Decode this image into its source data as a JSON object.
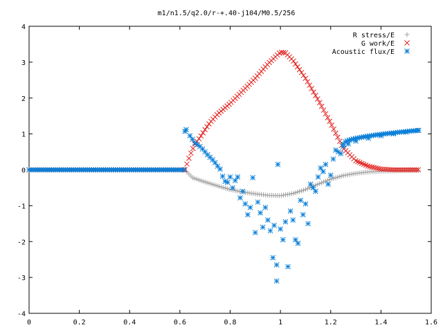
{
  "chart_data": {
    "type": "scatter",
    "title": "m1/n1.5/q2.0/r-+.40-j104/M0.5/256",
    "xlabel": "",
    "ylabel": "",
    "xlim": [
      0,
      1.6
    ],
    "ylim": [
      -4,
      4
    ],
    "x_ticks": [
      0,
      0.2,
      0.4,
      0.6,
      0.8,
      1,
      1.2,
      1.4,
      1.6
    ],
    "x_tick_labels": [
      "0",
      "0.2",
      "0.4",
      "0.6",
      "0.8",
      "1",
      "1.2",
      "1.4",
      "1.6"
    ],
    "y_ticks": [
      -4,
      -3,
      -2,
      -1,
      0,
      1,
      2,
      3,
      4
    ],
    "y_tick_labels": [
      "-4",
      "-3",
      "-2",
      "-1",
      "0",
      "1",
      "2",
      "3",
      "4"
    ],
    "grid": false,
    "legend_position": "top-right",
    "series": [
      {
        "name": "R stress/E",
        "marker": "plus",
        "color": "#a0a0a0",
        "x_range": [
          0,
          1.55
        ],
        "points": [
          [
            0.62,
            0
          ],
          [
            0.65,
            -0.22
          ],
          [
            0.7,
            -0.34
          ],
          [
            0.75,
            -0.45
          ],
          [
            0.8,
            -0.55
          ],
          [
            0.85,
            -0.62
          ],
          [
            0.9,
            -0.67
          ],
          [
            0.95,
            -0.71
          ],
          [
            1.0,
            -0.72
          ],
          [
            1.05,
            -0.66
          ],
          [
            1.1,
            -0.55
          ],
          [
            1.15,
            -0.4
          ],
          [
            1.2,
            -0.26
          ],
          [
            1.25,
            -0.16
          ],
          [
            1.3,
            -0.1
          ],
          [
            1.35,
            -0.06
          ],
          [
            1.4,
            -0.04
          ],
          [
            1.45,
            -0.03
          ],
          [
            1.5,
            -0.02
          ],
          [
            1.55,
            -0.02
          ]
        ]
      },
      {
        "name": "G work/E",
        "marker": "cross",
        "color": "#e0201c",
        "x_range": [
          0,
          1.55
        ],
        "points": [
          [
            0.62,
            0
          ],
          [
            0.64,
            0.4
          ],
          [
            0.66,
            0.72
          ],
          [
            0.68,
            0.9
          ],
          [
            0.7,
            1.12
          ],
          [
            0.72,
            1.32
          ],
          [
            0.75,
            1.55
          ],
          [
            0.8,
            1.85
          ],
          [
            0.85,
            2.2
          ],
          [
            0.9,
            2.55
          ],
          [
            0.95,
            2.95
          ],
          [
            1.0,
            3.28
          ],
          [
            1.02,
            3.26
          ],
          [
            1.05,
            3.05
          ],
          [
            1.1,
            2.55
          ],
          [
            1.15,
            1.95
          ],
          [
            1.2,
            1.3
          ],
          [
            1.25,
            0.6
          ],
          [
            1.3,
            0.25
          ],
          [
            1.35,
            0.1
          ],
          [
            1.4,
            0.02
          ],
          [
            1.45,
            0.0
          ],
          [
            1.5,
            0.0
          ],
          [
            1.55,
            0.0
          ]
        ]
      },
      {
        "name": "Acoustic flux/E",
        "marker": "star",
        "color": "#0a7fd8",
        "x_range": [
          0,
          1.55
        ],
        "points": [
          [
            0.62,
            1.07
          ],
          [
            0.625,
            1.12
          ],
          [
            0.64,
            0.95
          ],
          [
            0.65,
            0.85
          ],
          [
            0.66,
            0.75
          ],
          [
            0.67,
            0.7
          ],
          [
            0.68,
            0.65
          ],
          [
            0.69,
            0.58
          ],
          [
            0.7,
            0.5
          ],
          [
            0.71,
            0.42
          ],
          [
            0.72,
            0.35
          ],
          [
            0.73,
            0.28
          ],
          [
            0.74,
            0.2
          ],
          [
            0.75,
            0.1
          ],
          [
            0.76,
            0.02
          ],
          [
            0.77,
            -0.18
          ],
          [
            0.78,
            -0.32
          ],
          [
            0.79,
            -0.35
          ],
          [
            0.8,
            -0.2
          ],
          [
            0.81,
            -0.5
          ],
          [
            0.82,
            -0.3
          ],
          [
            0.83,
            -0.2
          ],
          [
            0.84,
            -0.78
          ],
          [
            0.85,
            -0.6
          ],
          [
            0.86,
            -0.95
          ],
          [
            0.87,
            -1.25
          ],
          [
            0.88,
            -1.05
          ],
          [
            0.89,
            -0.22
          ],
          [
            0.9,
            -1.75
          ],
          [
            0.91,
            -0.9
          ],
          [
            0.92,
            -1.2
          ],
          [
            0.93,
            -1.6
          ],
          [
            0.94,
            -1.05
          ],
          [
            0.95,
            -1.4
          ],
          [
            0.96,
            -1.7
          ],
          [
            0.97,
            -2.45
          ],
          [
            0.975,
            -1.55
          ],
          [
            0.985,
            -2.65
          ],
          [
            0.99,
            0.15
          ],
          [
            1.0,
            -1.65
          ],
          [
            1.01,
            -1.95
          ],
          [
            1.02,
            -1.45
          ],
          [
            1.03,
            -2.7
          ],
          [
            1.04,
            -1.15
          ],
          [
            1.05,
            -1.4
          ],
          [
            1.06,
            -1.95
          ],
          [
            1.07,
            -2.05
          ],
          [
            1.08,
            -0.85
          ],
          [
            1.09,
            -1.25
          ],
          [
            1.1,
            -0.95
          ],
          [
            1.11,
            -1.5
          ],
          [
            1.12,
            -0.4
          ],
          [
            1.13,
            -0.5
          ],
          [
            1.14,
            -0.6
          ],
          [
            1.15,
            -0.2
          ],
          [
            1.16,
            0.05
          ],
          [
            1.17,
            -0.05
          ],
          [
            1.18,
            0.15
          ],
          [
            1.19,
            -0.4
          ],
          [
            1.2,
            -0.15
          ],
          [
            1.21,
            0.3
          ],
          [
            1.22,
            0.55
          ],
          [
            1.23,
            0.5
          ],
          [
            1.24,
            0.45
          ],
          [
            1.25,
            0.65
          ],
          [
            1.27,
            0.72
          ],
          [
            1.3,
            0.8
          ],
          [
            1.35,
            0.88
          ],
          [
            1.4,
            0.95
          ],
          [
            1.45,
            1.0
          ],
          [
            1.5,
            1.05
          ],
          [
            1.55,
            1.1
          ],
          [
            0.985,
            -3.1
          ]
        ]
      }
    ]
  }
}
